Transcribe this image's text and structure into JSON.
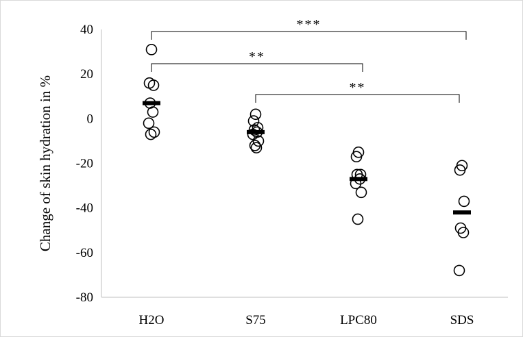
{
  "chart_data": {
    "type": "scatter",
    "title": "",
    "xlabel": "",
    "ylabel": "Change of skin hydration in %",
    "ylim": [
      -80,
      40
    ],
    "yticks": [
      40,
      20,
      0,
      -20,
      -40,
      -60,
      -80
    ],
    "grid": false,
    "legend": "none",
    "categories": [
      "H2O",
      "S75",
      "LPC80",
      "SDS"
    ],
    "series": [
      {
        "category": "H2O",
        "points": [
          31,
          16,
          15,
          7,
          3,
          -2,
          -6,
          -7
        ],
        "mean": 7
      },
      {
        "category": "S75",
        "points": [
          2,
          -1,
          -4,
          -5,
          -6,
          -7,
          -10,
          -12,
          -13
        ],
        "mean": -6
      },
      {
        "category": "LPC80",
        "points": [
          -15,
          -17,
          -25,
          -25,
          -27,
          -29,
          -33,
          -45
        ],
        "mean": -27
      },
      {
        "category": "SDS",
        "points": [
          -21,
          -23,
          -37,
          -49,
          -51,
          -68
        ],
        "mean": -42
      }
    ],
    "significance": [
      {
        "from": "H2O",
        "to": "SDS",
        "label": "***"
      },
      {
        "from": "H2O",
        "to": "LPC80",
        "label": "**"
      },
      {
        "from": "S75",
        "to": "SDS",
        "label": "**"
      }
    ],
    "colors": {
      "marker_stroke": "#000000",
      "mean_bar": "#000000",
      "axis": "#bfbfbf"
    }
  }
}
